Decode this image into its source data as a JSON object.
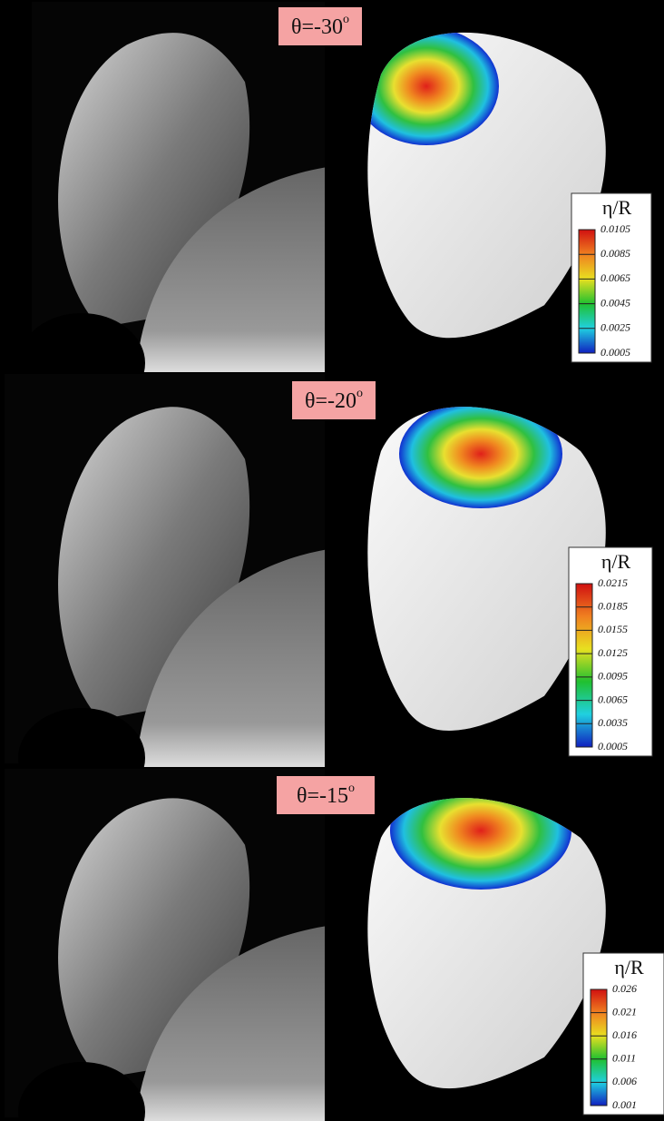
{
  "panels": [
    {
      "label": "θ=-30",
      "label_sup": "o",
      "legend_title": "η/R",
      "legend_ticks": [
        "0.0105",
        "0.0085",
        "0.0065",
        "0.0045",
        "0.0025",
        "0.0005"
      ]
    },
    {
      "label": "θ=-20",
      "label_sup": "o",
      "legend_title": "η/R",
      "legend_ticks": [
        "0.0215",
        "0.0185",
        "0.0155",
        "0.0125",
        "0.0095",
        "0.0065",
        "0.0035",
        "0.0005"
      ]
    },
    {
      "label": "θ=-15",
      "label_sup": "o",
      "legend_title": "η/R",
      "legend_ticks": [
        "0.026",
        "0.021",
        "0.016",
        "0.011",
        "0.006",
        "0.001"
      ]
    }
  ]
}
